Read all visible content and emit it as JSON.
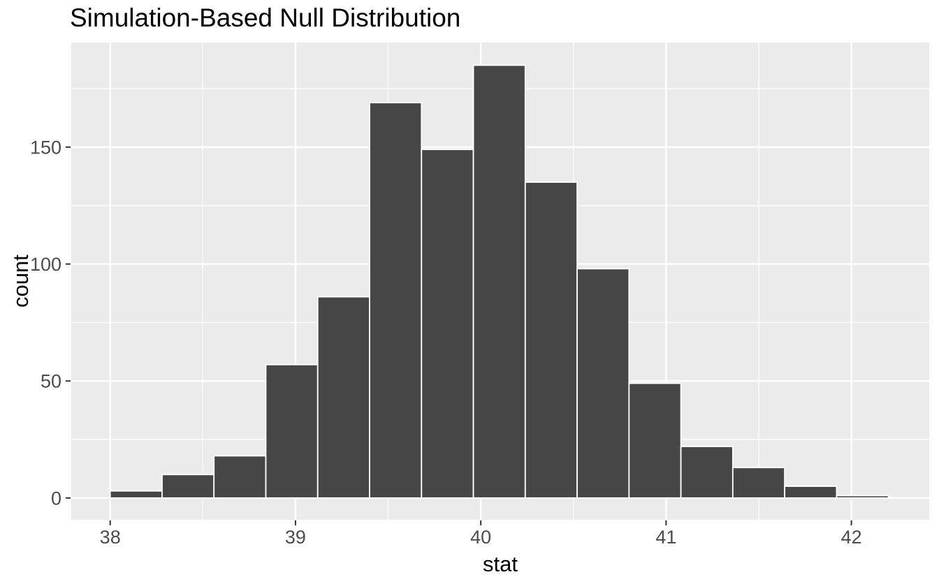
{
  "chart_data": {
    "type": "bar",
    "subtype": "histogram",
    "title": "Simulation-Based Null Distribution",
    "xlabel": "stat",
    "ylabel": "count",
    "bin_start": 38.0,
    "bin_width": 0.28,
    "counts": [
      3,
      10,
      18,
      57,
      86,
      169,
      149,
      185,
      135,
      98,
      49,
      22,
      13,
      5,
      1
    ],
    "total_simulations": 1000,
    "x_ticks": [
      "38",
      "39",
      "40",
      "41",
      "42"
    ],
    "x_tick_values": [
      38,
      39,
      40,
      41,
      42
    ],
    "y_ticks": [
      "0",
      "50",
      "100",
      "150"
    ],
    "y_tick_values": [
      0,
      50,
      100,
      150
    ],
    "x_minor_values": [
      38.5,
      39.5,
      40.5,
      41.5
    ],
    "y_minor_values": [
      25,
      75,
      125,
      175
    ],
    "xlim": [
      37.79,
      42.42
    ],
    "ylim": [
      -9.3,
      194.7
    ],
    "grid": true,
    "legend_position": "none",
    "colors": {
      "bar_fill": "#464646",
      "bar_stroke": "#FFFFFF",
      "panel_bg": "#EBEBEB",
      "grid_major": "#FFFFFF",
      "grid_minor": "#FFFFFF",
      "tick_mark": "#333333",
      "tick_label": "#4D4D4D",
      "title_text": "#000000",
      "page_bg": "#FFFFFF"
    }
  }
}
